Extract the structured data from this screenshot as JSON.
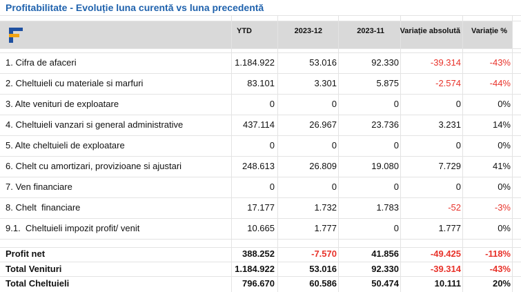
{
  "title": "Profitabilitate - Evoluție luna curentă vs luna precedentă",
  "table": {
    "columns": [
      "YTD",
      "2023-12",
      "2023-11",
      "Variație absolută",
      "Variație %"
    ],
    "rows": [
      [
        "1. Cifra de afaceri",
        "1.184.922",
        "53.016",
        "92.330",
        "-39.314",
        "-43%"
      ],
      [
        "2. Cheltuieli cu materiale si marfuri",
        "83.101",
        "3.301",
        "5.875",
        "-2.574",
        "-44%"
      ],
      [
        "3. Alte venituri de exploatare",
        "0",
        "0",
        "0",
        "0",
        "0%"
      ],
      [
        "4. Cheltuieli vanzari si general administrative",
        "437.114",
        "26.967",
        "23.736",
        "3.231",
        "14%"
      ],
      [
        "5. Alte cheltuieli de exploatare",
        "0",
        "0",
        "0",
        "0",
        "0%"
      ],
      [
        "6. Chelt cu amortizari, provizioane si ajustari",
        "248.613",
        "26.809",
        "19.080",
        "7.729",
        "41%"
      ],
      [
        "7. Ven financiare",
        "0",
        "0",
        "0",
        "0",
        "0%"
      ],
      [
        "8. Chelt  financiare",
        "17.177",
        "1.732",
        "1.783",
        "-52",
        "-3%"
      ],
      [
        "9.1.  Cheltuieli impozit profit/ venit",
        "10.665",
        "1.777",
        "0",
        "1.777",
        "0%"
      ]
    ],
    "totals": [
      [
        "Profit net",
        "388.252",
        "-7.570",
        "41.856",
        "-49.425",
        "-118%"
      ],
      [
        "Total Venituri",
        "1.184.922",
        "53.016",
        "92.330",
        "-39.314",
        "-43%"
      ],
      [
        "Total Cheltuieli",
        "796.670",
        "60.586",
        "50.474",
        "10.111",
        "20%"
      ]
    ]
  }
}
